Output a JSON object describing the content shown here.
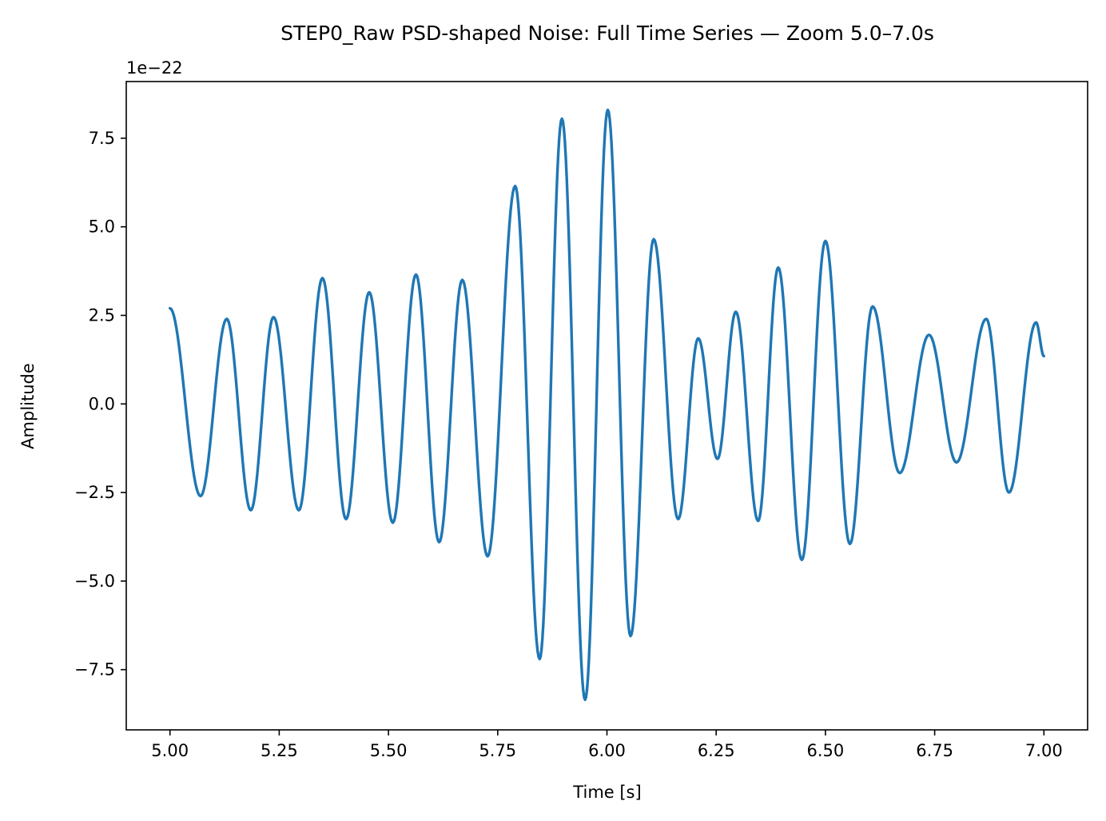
{
  "chart_data": {
    "type": "line",
    "title": "STEP0_Raw PSD-shaped Noise: Full Time Series — Zoom 5.0–7.0s",
    "xlabel": "Time [s]",
    "ylabel": "Amplitude",
    "y_offset_label": "1e−22",
    "xlim": [
      4.9,
      7.1
    ],
    "ylim": [
      -9.2,
      9.1
    ],
    "x_ticks": [
      5.0,
      5.25,
      5.5,
      5.75,
      6.0,
      6.25,
      6.5,
      6.75,
      7.0
    ],
    "x_tick_labels": [
      "5.00",
      "5.25",
      "5.50",
      "5.75",
      "6.00",
      "6.25",
      "6.50",
      "6.75",
      "7.00"
    ],
    "y_ticks": [
      -7.5,
      -5.0,
      -2.5,
      0.0,
      2.5,
      5.0,
      7.5
    ],
    "y_tick_labels": [
      "−7.5",
      "−5.0",
      "−2.5",
      "0.0",
      "2.5",
      "5.0",
      "7.5"
    ],
    "grid": false,
    "series": [
      {
        "color": "#1f77b4",
        "extrema": [
          [
            5.0,
            2.7
          ],
          [
            5.07,
            -2.6
          ],
          [
            5.13,
            2.4
          ],
          [
            5.185,
            -3.0
          ],
          [
            5.237,
            2.45
          ],
          [
            5.295,
            -3.0
          ],
          [
            5.349,
            3.55
          ],
          [
            5.403,
            -3.25
          ],
          [
            5.456,
            3.15
          ],
          [
            5.51,
            -3.35
          ],
          [
            5.563,
            3.65
          ],
          [
            5.616,
            -3.9
          ],
          [
            5.669,
            3.5
          ],
          [
            5.727,
            -4.3
          ],
          [
            5.79,
            6.15
          ],
          [
            5.846,
            -7.2
          ],
          [
            5.897,
            8.05
          ],
          [
            5.95,
            -8.35
          ],
          [
            6.002,
            8.3
          ],
          [
            6.054,
            -6.55
          ],
          [
            6.107,
            4.65
          ],
          [
            6.163,
            -3.25
          ],
          [
            6.209,
            1.85
          ],
          [
            6.253,
            -1.55
          ],
          [
            6.295,
            2.6
          ],
          [
            6.346,
            -3.3
          ],
          [
            6.392,
            3.85
          ],
          [
            6.446,
            -4.4
          ],
          [
            6.5,
            4.6
          ],
          [
            6.556,
            -3.95
          ],
          [
            6.608,
            2.75
          ],
          [
            6.67,
            -1.95
          ],
          [
            6.737,
            1.95
          ],
          [
            6.8,
            -1.65
          ],
          [
            6.868,
            2.4
          ],
          [
            6.92,
            -2.5
          ],
          [
            6.982,
            2.3
          ],
          [
            7.0,
            1.35
          ]
        ]
      }
    ]
  }
}
